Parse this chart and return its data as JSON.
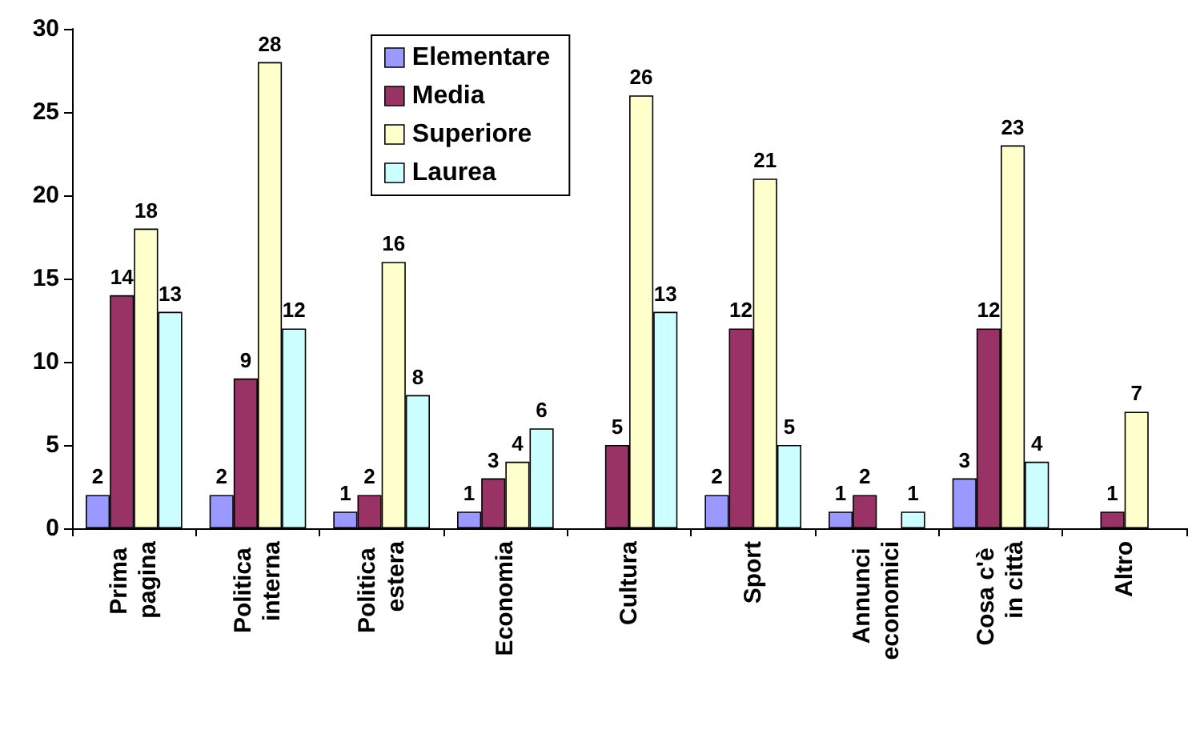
{
  "chart_data": {
    "type": "bar",
    "categories": [
      "Prima pagina",
      "Politica interna",
      "Politica estera",
      "Economia",
      "Cultura",
      "Sport",
      "Annunci economici",
      "Cosa c'è in città",
      "Altro"
    ],
    "series": [
      {
        "name": "Elementare",
        "color": "#9999ff",
        "values": [
          2,
          2,
          1,
          1,
          null,
          2,
          1,
          3,
          null
        ]
      },
      {
        "name": "Media",
        "color": "#993366",
        "values": [
          14,
          9,
          2,
          3,
          5,
          12,
          2,
          12,
          1
        ]
      },
      {
        "name": "Superiore",
        "color": "#ffffcc",
        "values": [
          18,
          28,
          16,
          4,
          26,
          21,
          null,
          23,
          7
        ]
      },
      {
        "name": "Laurea",
        "color": "#ccffff",
        "values": [
          13,
          12,
          8,
          6,
          13,
          5,
          1,
          4,
          null
        ]
      }
    ],
    "ylim": [
      0,
      30
    ],
    "yticks": [
      0,
      5,
      10,
      15,
      20,
      25,
      30
    ],
    "grid": false,
    "legend": "top",
    "data_labels": true
  }
}
